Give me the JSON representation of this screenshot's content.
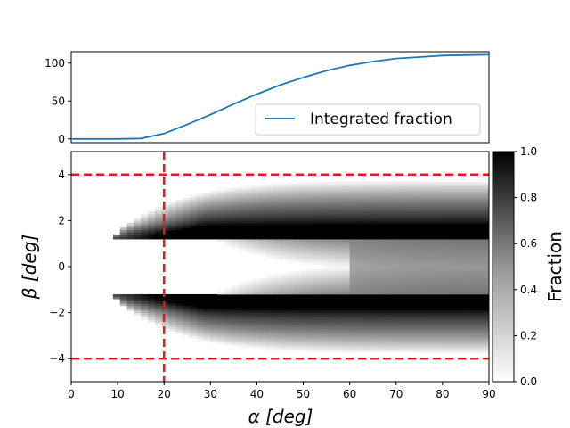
{
  "chart_data": [
    {
      "type": "line",
      "x": [
        0,
        5,
        10,
        15,
        20,
        25,
        30,
        35,
        40,
        45,
        50,
        55,
        60,
        65,
        70,
        75,
        80,
        85,
        90
      ],
      "series": [
        {
          "name": "Integrated fraction",
          "color": "#1f77b4",
          "values": [
            0,
            0,
            0,
            0.5,
            7,
            19,
            32,
            46,
            59,
            71,
            81,
            90,
            97,
            102,
            106,
            108,
            110,
            110.5,
            111
          ]
        }
      ],
      "xlim": [
        0,
        90
      ],
      "ylim": [
        -5,
        115
      ],
      "yticks": [
        "0",
        "50",
        "100"
      ],
      "legend": "lower-right",
      "grid": false
    },
    {
      "type": "heatmap",
      "xlabel": "α [deg]",
      "ylabel": "β [deg]",
      "xlim": [
        0,
        90
      ],
      "ylim": [
        -5,
        5
      ],
      "xticks": [
        "0",
        "10",
        "20",
        "30",
        "40",
        "50",
        "60",
        "70",
        "80",
        "90"
      ],
      "yticks": [
        "4",
        "2",
        "0",
        "−2",
        "−4"
      ],
      "colormap": "Greys",
      "colorbar": {
        "label": "Fraction",
        "range": [
          0,
          1
        ],
        "ticks": [
          "0.0",
          "0.2",
          "0.4",
          "0.6",
          "0.8",
          "1.0"
        ]
      },
      "reference_lines": {
        "color": "#e41a1c",
        "style": "dashed",
        "vertical_alpha": 20,
        "horizontal_beta": [
          4,
          -4
        ]
      }
    }
  ]
}
